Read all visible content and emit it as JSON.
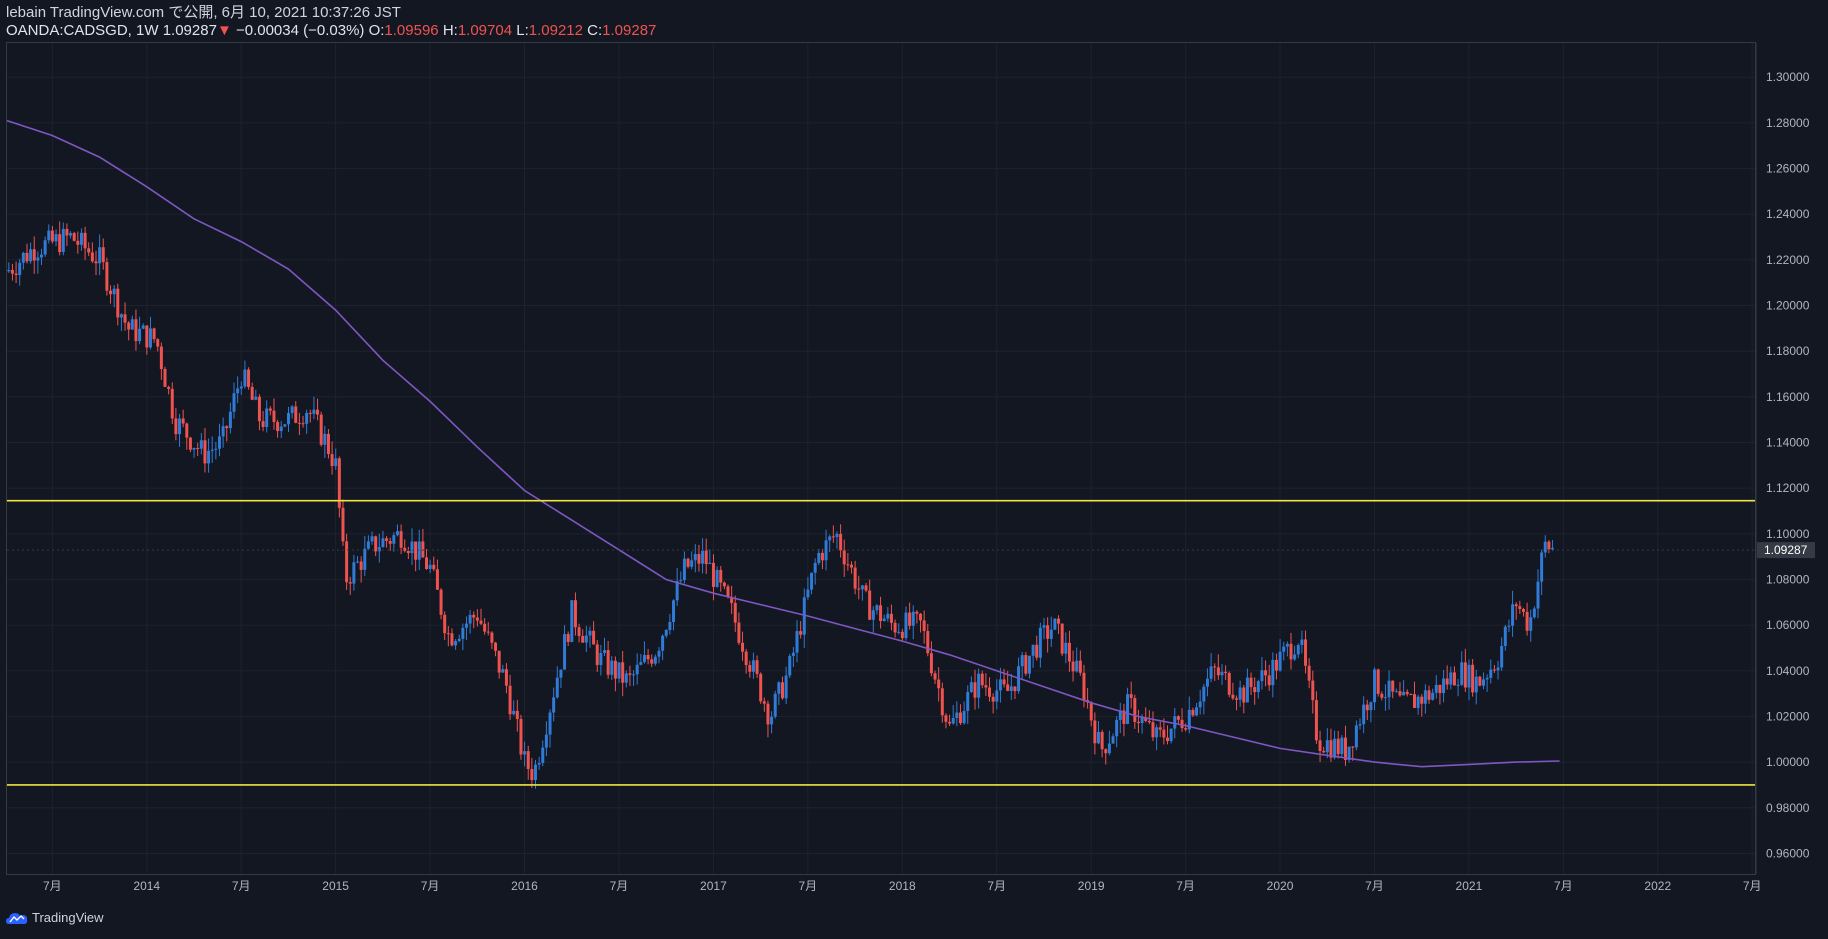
{
  "header": {
    "line1": "lebain TradingView.com で公開, 6月 10, 2021 10:37:26 JST",
    "symbol": "OANDA:CADSGD, 1W",
    "price": "1.09287",
    "arrow": "▼",
    "change": "−0.00034 (−0.03%)",
    "o_label": "O:",
    "o_value": "1.09596",
    "h_label": "H:",
    "h_value": "1.09704",
    "l_label": "L:",
    "l_value": "1.09212",
    "c_label": "C:",
    "c_value": "1.09287"
  },
  "footer": {
    "brand": "TradingView",
    "icon": "tradingview-cloud-icon"
  },
  "colors": {
    "background": "#131722",
    "up": "#2f7bd6",
    "down": "#ef5350",
    "ma": "#7e57c2",
    "hline": "#f0e442",
    "grid": "#1e222d",
    "axis_text": "#b2b5be",
    "price_label_bg": "#363a45"
  },
  "chart_data": {
    "type": "candlestick",
    "symbol": "OANDA:CADSGD",
    "timeframe": "1W",
    "y_ticks": [
      "1.30000",
      "1.28000",
      "1.26000",
      "1.24000",
      "1.22000",
      "1.20000",
      "1.18000",
      "1.16000",
      "1.14000",
      "1.12000",
      "1.10000",
      "1.08000",
      "1.06000",
      "1.04000",
      "1.02000",
      "1.00000",
      "0.98000",
      "0.96000"
    ],
    "x_ticks": [
      {
        "label": "7月",
        "t": 2013.5
      },
      {
        "label": "2014",
        "t": 2014.0
      },
      {
        "label": "7月",
        "t": 2014.5
      },
      {
        "label": "2015",
        "t": 2015.0
      },
      {
        "label": "7月",
        "t": 2015.5
      },
      {
        "label": "2016",
        "t": 2016.0
      },
      {
        "label": "7月",
        "t": 2016.5
      },
      {
        "label": "2017",
        "t": 2017.0
      },
      {
        "label": "7月",
        "t": 2017.5
      },
      {
        "label": "2018",
        "t": 2018.0
      },
      {
        "label": "7月",
        "t": 2018.5
      },
      {
        "label": "2019",
        "t": 2019.0
      },
      {
        "label": "7月",
        "t": 2019.5
      },
      {
        "label": "2020",
        "t": 2020.0
      },
      {
        "label": "7月",
        "t": 2020.5
      },
      {
        "label": "2021",
        "t": 2021.0
      },
      {
        "label": "7月",
        "t": 2021.5
      },
      {
        "label": "2022",
        "t": 2022.0
      },
      {
        "label": "7月",
        "t": 2022.5
      }
    ],
    "x_range": [
      2013.26,
      2022.52
    ],
    "y_range": [
      0.951,
      1.315
    ],
    "current_price": 1.09287,
    "horizontal_lines": [
      1.1145,
      0.99
    ],
    "moving_average": [
      [
        2013.26,
        1.281
      ],
      [
        2013.5,
        1.2745
      ],
      [
        2013.75,
        1.265
      ],
      [
        2014.0,
        1.252
      ],
      [
        2014.25,
        1.238
      ],
      [
        2014.5,
        1.228
      ],
      [
        2014.75,
        1.216
      ],
      [
        2015.0,
        1.198
      ],
      [
        2015.25,
        1.176
      ],
      [
        2015.5,
        1.158
      ],
      [
        2015.75,
        1.138
      ],
      [
        2016.0,
        1.119
      ],
      [
        2016.25,
        1.106
      ],
      [
        2016.5,
        1.093
      ],
      [
        2016.75,
        1.08
      ],
      [
        2017.0,
        1.074
      ],
      [
        2017.25,
        1.069
      ],
      [
        2017.5,
        1.064
      ],
      [
        2017.75,
        1.0585
      ],
      [
        2018.0,
        1.053
      ],
      [
        2018.25,
        1.047
      ],
      [
        2018.5,
        1.04
      ],
      [
        2018.75,
        1.033
      ],
      [
        2019.0,
        1.026
      ],
      [
        2019.25,
        1.02
      ],
      [
        2019.5,
        1.016
      ],
      [
        2019.75,
        1.011
      ],
      [
        2020.0,
        1.006
      ],
      [
        2020.25,
        1.003
      ],
      [
        2020.5,
        1.0
      ],
      [
        2020.75,
        0.998
      ],
      [
        2021.0,
        0.999
      ],
      [
        2021.25,
        1.0
      ],
      [
        2021.48,
        1.0005
      ]
    ],
    "price_path": [
      [
        2013.26,
        1.215
      ],
      [
        2013.4,
        1.225
      ],
      [
        2013.6,
        1.23
      ],
      [
        2013.75,
        1.22
      ],
      [
        2013.9,
        1.19
      ],
      [
        2014.05,
        1.185
      ],
      [
        2014.15,
        1.15
      ],
      [
        2014.3,
        1.135
      ],
      [
        2014.4,
        1.14
      ],
      [
        2014.5,
        1.17
      ],
      [
        2014.6,
        1.15
      ],
      [
        2014.75,
        1.15
      ],
      [
        2014.85,
        1.155
      ],
      [
        2014.95,
        1.14
      ],
      [
        2015.0,
        1.13
      ],
      [
        2015.05,
        1.08
      ],
      [
        2015.2,
        1.095
      ],
      [
        2015.35,
        1.1
      ],
      [
        2015.5,
        1.085
      ],
      [
        2015.6,
        1.055
      ],
      [
        2015.75,
        1.065
      ],
      [
        2015.9,
        1.035
      ],
      [
        2016.0,
        1.0
      ],
      [
        2016.05,
        0.995
      ],
      [
        2016.15,
        1.03
      ],
      [
        2016.25,
        1.065
      ],
      [
        2016.4,
        1.045
      ],
      [
        2016.55,
        1.035
      ],
      [
        2016.7,
        1.05
      ],
      [
        2016.85,
        1.085
      ],
      [
        2016.95,
        1.09
      ],
      [
        2017.1,
        1.065
      ],
      [
        2017.3,
        1.02
      ],
      [
        2017.4,
        1.04
      ],
      [
        2017.55,
        1.09
      ],
      [
        2017.65,
        1.1
      ],
      [
        2017.8,
        1.07
      ],
      [
        2017.95,
        1.06
      ],
      [
        2018.1,
        1.06
      ],
      [
        2018.25,
        1.015
      ],
      [
        2018.4,
        1.035
      ],
      [
        2018.55,
        1.03
      ],
      [
        2018.7,
        1.05
      ],
      [
        2018.8,
        1.06
      ],
      [
        2018.95,
        1.035
      ],
      [
        2019.05,
        1.005
      ],
      [
        2019.2,
        1.025
      ],
      [
        2019.35,
        1.01
      ],
      [
        2019.5,
        1.02
      ],
      [
        2019.65,
        1.04
      ],
      [
        2019.8,
        1.03
      ],
      [
        2019.95,
        1.04
      ],
      [
        2020.1,
        1.055
      ],
      [
        2020.2,
        1.01
      ],
      [
        2020.35,
        1.005
      ],
      [
        2020.5,
        1.035
      ],
      [
        2020.65,
        1.025
      ],
      [
        2020.8,
        1.03
      ],
      [
        2020.95,
        1.04
      ],
      [
        2021.05,
        1.035
      ],
      [
        2021.15,
        1.045
      ],
      [
        2021.25,
        1.07
      ],
      [
        2021.32,
        1.06
      ],
      [
        2021.4,
        1.095
      ],
      [
        2021.46,
        1.093
      ]
    ]
  }
}
